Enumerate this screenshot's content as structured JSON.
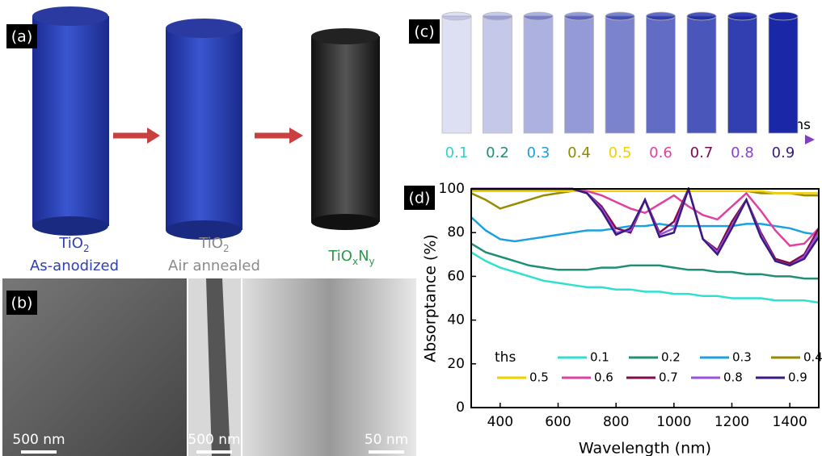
{
  "panel_a": {
    "label": "(a)",
    "items": [
      {
        "formula": [
          "TiO",
          "2"
        ],
        "caption": "As-anodized"
      },
      {
        "formula": [
          "TiO",
          "2"
        ],
        "caption": "Air annealed"
      },
      {
        "formula": [
          "TiO",
          "x",
          "N",
          "y"
        ]
      }
    ]
  },
  "panel_b": {
    "label": "(b)",
    "scale_bars": [
      "500 nm",
      "500 nm",
      "50 nm"
    ]
  },
  "panel_c": {
    "label": "(c)",
    "axis_label": "ths",
    "ths": [
      "0.1",
      "0.2",
      "0.3",
      "0.4",
      "0.5",
      "0.6",
      "0.7",
      "0.8",
      "0.9"
    ],
    "colors": [
      "#2fd3c8",
      "#1f8f78",
      "#1ba0d8",
      "#8f8a00",
      "#f0d000",
      "#e040a0",
      "#7a0a4a",
      "#8a40d0",
      "#3a1a80"
    ]
  },
  "chart_data": {
    "type": "line",
    "label": "(d)",
    "x_label": "Wavelength (nm)",
    "y_label": "Absorptance (%)",
    "legend_title": "ths",
    "x": [
      300,
      350,
      400,
      450,
      500,
      550,
      600,
      650,
      700,
      750,
      800,
      850,
      900,
      950,
      1000,
      1050,
      1100,
      1150,
      1200,
      1250,
      1300,
      1350,
      1400,
      1450,
      1500
    ],
    "xlim": [
      300,
      1500
    ],
    "xticks": [
      400,
      600,
      800,
      1000,
      1200,
      1400
    ],
    "ylim": [
      0,
      100
    ],
    "yticks": [
      0,
      20,
      40,
      60,
      80,
      100
    ],
    "series": [
      {
        "name": "0.1",
        "color": "#2fe0d0",
        "values": [
          71,
          67,
          64,
          62,
          60,
          58,
          57,
          56,
          55,
          55,
          54,
          54,
          53,
          53,
          52,
          52,
          51,
          51,
          50,
          50,
          50,
          49,
          49,
          49,
          48
        ]
      },
      {
        "name": "0.2",
        "color": "#1f8f78",
        "values": [
          75,
          71,
          69,
          67,
          65,
          64,
          63,
          63,
          63,
          64,
          64,
          65,
          65,
          65,
          64,
          63,
          63,
          62,
          62,
          61,
          61,
          60,
          60,
          59,
          59
        ]
      },
      {
        "name": "0.3",
        "color": "#1ba0e0",
        "values": [
          87,
          81,
          77,
          76,
          77,
          78,
          79,
          80,
          81,
          81,
          82,
          83,
          83,
          84,
          83,
          83,
          83,
          83,
          83,
          84,
          84,
          83,
          82,
          80,
          79
        ]
      },
      {
        "name": "0.4",
        "color": "#9a8a00",
        "values": [
          98,
          95,
          91,
          93,
          95,
          97,
          98,
          99,
          99,
          99,
          99,
          99,
          99,
          99,
          99,
          99,
          99,
          99,
          99,
          99,
          98,
          98,
          98,
          97,
          97
        ]
      },
      {
        "name": "0.5",
        "color": "#f0d000",
        "values": [
          99,
          99,
          99,
          99,
          99,
          99,
          99,
          99,
          99,
          99,
          99,
          99,
          99,
          99,
          99,
          99,
          99,
          99,
          99,
          99,
          99,
          98,
          98,
          98,
          98
        ]
      },
      {
        "name": "0.6",
        "color": "#e040a0",
        "values": [
          100,
          100,
          100,
          100,
          100,
          100,
          100,
          100,
          99,
          97,
          94,
          91,
          89,
          93,
          97,
          92,
          88,
          86,
          92,
          98,
          90,
          81,
          74,
          75,
          82
        ]
      },
      {
        "name": "0.7",
        "color": "#800a4a",
        "values": [
          100,
          100,
          100,
          100,
          100,
          100,
          100,
          100,
          98,
          92,
          82,
          80,
          95,
          80,
          85,
          100,
          77,
          72,
          85,
          95,
          80,
          68,
          66,
          70,
          82
        ]
      },
      {
        "name": "0.8",
        "color": "#9a50e0",
        "values": [
          100,
          100,
          100,
          100,
          100,
          100,
          100,
          100,
          98,
          91,
          80,
          81,
          95,
          79,
          82,
          100,
          77,
          71,
          83,
          95,
          79,
          67,
          65,
          69,
          80
        ]
      },
      {
        "name": "0.9",
        "color": "#3a1a80",
        "values": [
          100,
          100,
          100,
          100,
          100,
          100,
          100,
          100,
          98,
          90,
          79,
          82,
          95,
          78,
          80,
          100,
          77,
          70,
          82,
          95,
          78,
          67,
          65,
          68,
          78
        ]
      }
    ]
  }
}
